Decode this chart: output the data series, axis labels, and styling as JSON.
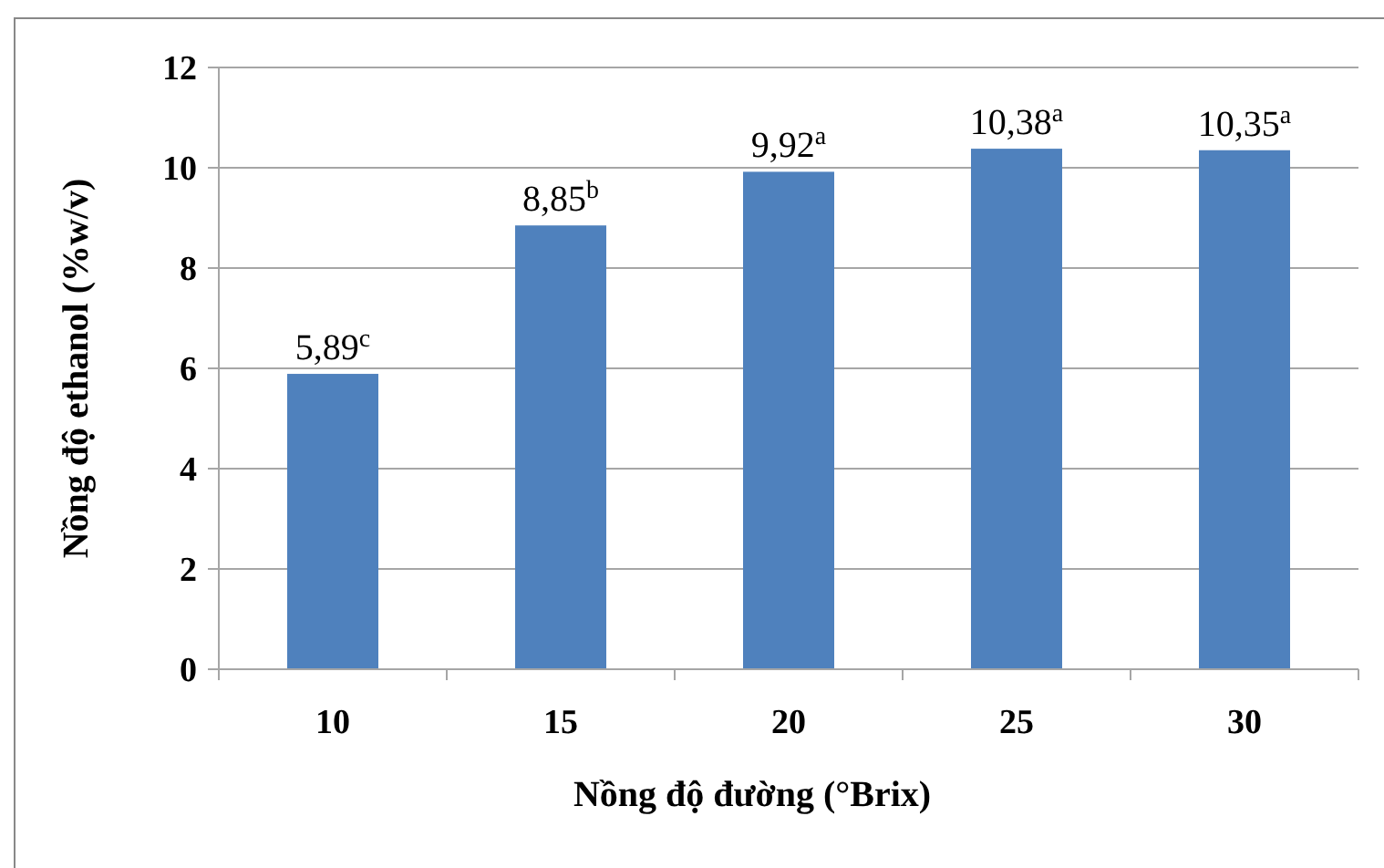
{
  "chart_data": {
    "type": "bar",
    "xlabel": "Nồng độ đường (°Brix)",
    "ylabel": "Nồng độ ethanol (%w/v)",
    "categories": [
      "10",
      "15",
      "20",
      "25",
      "30"
    ],
    "values": [
      5.89,
      8.85,
      9.92,
      10.38,
      10.35
    ],
    "value_labels": [
      "5,89$^{c}$",
      "8,85$^{b}$",
      "9,92$^{a}$",
      "10,38$^{a}$",
      "10,35$^{a}$"
    ],
    "color": "#4f81bd",
    "ylim": [
      0,
      12
    ],
    "yticks": [
      0,
      2,
      4,
      6,
      8,
      10,
      12
    ],
    "grid": "y"
  }
}
